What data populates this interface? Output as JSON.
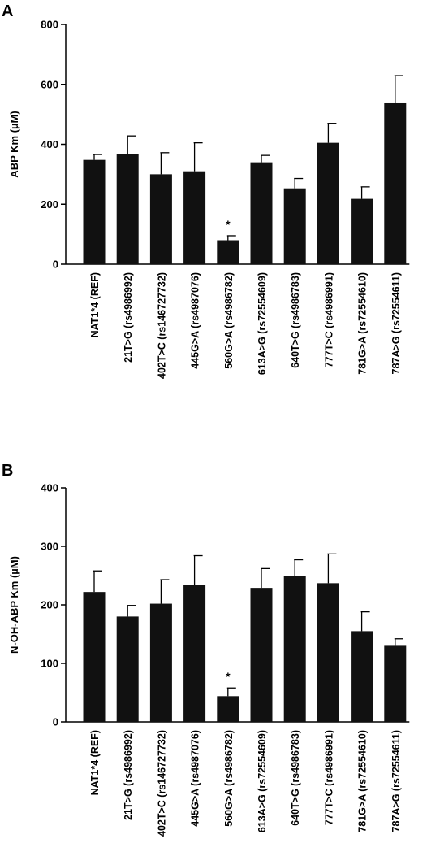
{
  "chart_data": [
    {
      "type": "bar",
      "panel_label": "A",
      "ylabel": "ABP Km (µM)",
      "ylim": [
        0,
        800
      ],
      "yticks": [
        "0",
        "200",
        "400",
        "600",
        "800"
      ],
      "categories": [
        "NAT1*4 (REF)",
        "21T>G (rs4986992)",
        "402T>C (rs146727732)",
        "445G>A (rs4987076)",
        "560G>A (rs4986782)",
        "613A>G (rs72554609)",
        "640T>G (rs4986783)",
        "777T>C (rs4986991)",
        "781G>A (rs72554610)",
        "787A>G (rs72554611)"
      ],
      "values": [
        348,
        368,
        300,
        310,
        80,
        340,
        253,
        405,
        218,
        537
      ],
      "errors": [
        18,
        60,
        72,
        95,
        15,
        23,
        33,
        65,
        40,
        92
      ],
      "annotations": [
        {
          "category_index": 4,
          "text": "*"
        }
      ],
      "bar_color": "#111111"
    },
    {
      "type": "bar",
      "panel_label": "B",
      "ylabel": "N-OH-ABP Km (µM)",
      "ylim": [
        0,
        400
      ],
      "yticks": [
        "0",
        "100",
        "200",
        "300",
        "400"
      ],
      "categories": [
        "NAT1*4 (REF)",
        "21T>G (rs4986992)",
        "402T>C (rs146727732)",
        "445G>A (rs4987076)",
        "560G>A (rs4986782)",
        "613A>G (rs72554609)",
        "640T>G (rs4986783)",
        "777T>C (rs4986991)",
        "781G>A (rs72554610)",
        "787A>G (rs72554611)"
      ],
      "values": [
        222,
        180,
        202,
        234,
        44,
        229,
        250,
        237,
        155,
        130
      ],
      "errors": [
        36,
        19,
        41,
        50,
        14,
        33,
        27,
        50,
        33,
        12
      ],
      "annotations": [
        {
          "category_index": 4,
          "text": "*"
        }
      ],
      "bar_color": "#111111"
    }
  ]
}
